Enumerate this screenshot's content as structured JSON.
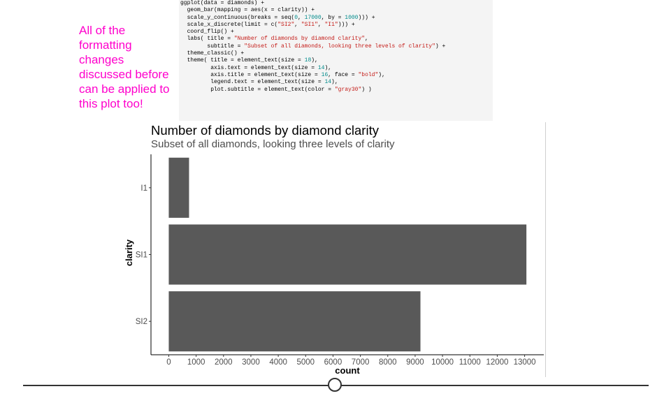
{
  "note": "All of the formatting changes discussed before can be applied to this plot too!",
  "code_lines": [
    [
      [
        "t",
        "ggplot(data = diamonds) +"
      ]
    ],
    [
      [
        "t",
        "  geom_bar(mapping = aes(x = clarity)) +"
      ]
    ],
    [
      [
        "t",
        "  scale_y_continuous(breaks = seq("
      ],
      [
        "n",
        "0"
      ],
      [
        "t",
        ", "
      ],
      [
        "n",
        "17000"
      ],
      [
        "t",
        ", by = "
      ],
      [
        "n",
        "1000"
      ],
      [
        "t",
        "))) +"
      ]
    ],
    [
      [
        "t",
        "  scale_x_discrete(limit = c("
      ],
      [
        "s",
        "\"SI2\""
      ],
      [
        "t",
        ", "
      ],
      [
        "s",
        "\"SI1\""
      ],
      [
        "t",
        ", "
      ],
      [
        "s",
        "\"I1\""
      ],
      [
        "t",
        "))) +"
      ]
    ],
    [
      [
        "t",
        "  coord_flip() +"
      ]
    ],
    [
      [
        "t",
        "  labs( title = "
      ],
      [
        "s",
        "\"Number of diamonds by diamond clarity\""
      ],
      [
        "t",
        ","
      ]
    ],
    [
      [
        "t",
        "        subtitle = "
      ],
      [
        "s",
        "\"Subset of all diamonds, looking three levels of clarity\""
      ],
      [
        "t",
        ") +"
      ]
    ],
    [
      [
        "t",
        "  theme_classic() +"
      ]
    ],
    [
      [
        "t",
        "  theme( title = element_text(size = "
      ],
      [
        "n",
        "18"
      ],
      [
        "t",
        "),"
      ]
    ],
    [
      [
        "t",
        "         axis.text = element_text(size = "
      ],
      [
        "n",
        "14"
      ],
      [
        "t",
        "),"
      ]
    ],
    [
      [
        "t",
        "         axis.title = element_text(size = "
      ],
      [
        "n",
        "16"
      ],
      [
        "t",
        ", face = "
      ],
      [
        "s",
        "\"bold\""
      ],
      [
        "t",
        "),"
      ]
    ],
    [
      [
        "t",
        "         legend.text = element_text(size = "
      ],
      [
        "n",
        "14"
      ],
      [
        "t",
        "),"
      ]
    ],
    [
      [
        "t",
        "         plot.subtitle = element_text(color = "
      ],
      [
        "s",
        "\"gray30\""
      ],
      [
        "t",
        ") )"
      ]
    ]
  ],
  "colors": {
    "note": "#ff00cc",
    "bar": "#595959",
    "subtitle": "#4d4d4d"
  },
  "chart_data": {
    "type": "bar",
    "orientation": "horizontal",
    "title": "Number of diamonds by diamond clarity",
    "subtitle": "Subset of all diamonds, looking three levels of clarity",
    "xlabel": "count",
    "ylabel": "clarity",
    "categories": [
      "SI2",
      "SI1",
      "I1"
    ],
    "values": [
      9194,
      13065,
      741
    ],
    "ticks": [
      0,
      1000,
      2000,
      3000,
      4000,
      5000,
      6000,
      7000,
      8000,
      9000,
      10000,
      11000,
      12000,
      13000
    ],
    "xlim": [
      -650,
      13700
    ],
    "grid": false
  }
}
